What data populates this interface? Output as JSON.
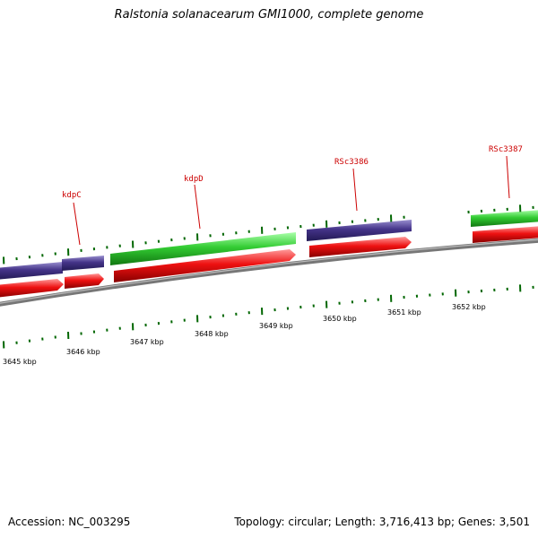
{
  "title": "Ralstonia solanacearum GMI1000, complete genome",
  "footer": {
    "accession": "Accession: NC_003295",
    "summary": "Topology: circular; Length: 3,716,413 bp; Genes: 3,501"
  },
  "scale": {
    "labels": [
      "3645 kbp",
      "3646 kbp",
      "3647 kbp",
      "3648 kbp",
      "3649 kbp",
      "3650 kbp",
      "3651 kbp",
      "3652 kbp"
    ]
  },
  "gene_labels": [
    "kdpC",
    "kdpD",
    "RSc3386",
    "RSc3387"
  ],
  "colors": {
    "gene_forward": "#33cc33",
    "gene_reverse": "#443388",
    "cds": "#ee1111",
    "backbone": "#888888",
    "tick": "#006600",
    "label": "#cc0000"
  }
}
